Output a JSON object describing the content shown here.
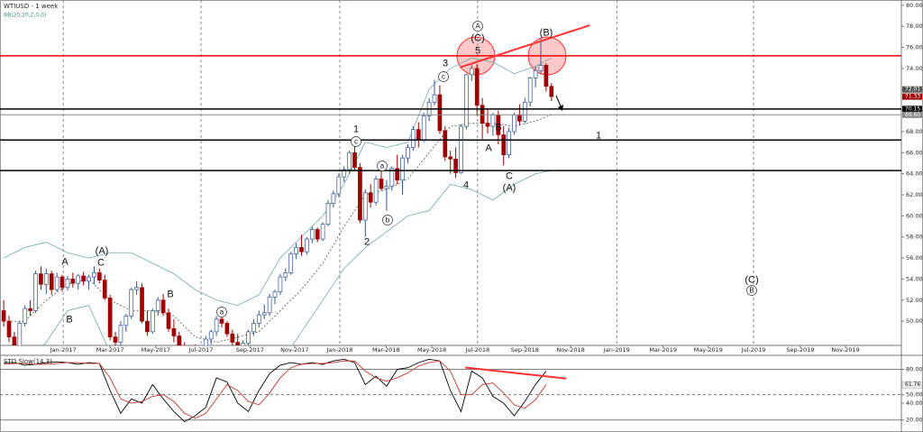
{
  "chart_data": [
    {
      "type": "candlestick",
      "title": "WTIUSD - 1 week",
      "indicator": "BB(20,20,2,0,0)",
      "bull_color": "#2f5597",
      "bear_color": "#a00000",
      "xlim": [
        -0.7,
        168.8
      ],
      "ylim": [
        47.7,
        80.5
      ],
      "xticks": [
        {
          "value": 11.2,
          "label": "Jan-2017"
        },
        {
          "value": 20,
          "label": "Mar-2017"
        },
        {
          "value": 28.6,
          "label": "May-2017"
        },
        {
          "value": 37.1,
          "label": "Jul-2017"
        },
        {
          "value": 46.3,
          "label": "Sep-2017"
        },
        {
          "value": 54.7,
          "label": "Nov-2017"
        },
        {
          "value": 63.2,
          "label": "Jan-2018"
        },
        {
          "value": 71.9,
          "label": "Mar-2018"
        },
        {
          "value": 80.5,
          "label": "May-2018"
        },
        {
          "value": 89.1,
          "label": "Jul-2018"
        },
        {
          "value": 98,
          "label": "Sep-2018"
        },
        {
          "value": 106.6,
          "label": "Nov-2018"
        },
        {
          "value": 115.3,
          "label": "Jan-2019"
        },
        {
          "value": 124,
          "label": "Mar-2019"
        },
        {
          "value": 132.5,
          "label": "May-2019"
        },
        {
          "value": 141,
          "label": "Jul-2019"
        },
        {
          "value": 149.8,
          "label": "Sep-2019"
        },
        {
          "value": 158.3,
          "label": "Nov-2019"
        }
      ],
      "yticks": [
        {
          "value": 80,
          "label": "80.00"
        },
        {
          "value": 78,
          "label": "78.00"
        },
        {
          "value": 76,
          "label": "76.00"
        },
        {
          "value": 74,
          "label": "74.00"
        },
        {
          "value": 72,
          "label": "72.00"
        },
        {
          "value": 70,
          "label": "70.00"
        },
        {
          "value": 68,
          "label": "68.00"
        },
        {
          "value": 66,
          "label": "66.00"
        },
        {
          "value": 64,
          "label": "64.00"
        },
        {
          "value": 62,
          "label": "62.00"
        },
        {
          "value": 60,
          "label": "60.00"
        },
        {
          "value": 58,
          "label": "58.00"
        },
        {
          "value": 56,
          "label": "56.00"
        },
        {
          "value": 54,
          "label": "54.00"
        },
        {
          "value": 52,
          "label": "52.00"
        },
        {
          "value": 50,
          "label": "50.00"
        }
      ],
      "candles": [
        [
          51,
          52,
          49.5,
          50
        ],
        [
          50,
          50.5,
          48,
          48.5
        ],
        [
          48.5,
          49,
          47,
          47.5
        ],
        [
          47.5,
          50,
          47.2,
          49.8
        ],
        [
          49.8,
          51.5,
          49.5,
          51.2
        ],
        [
          51.2,
          52,
          50.5,
          51
        ],
        [
          51,
          54.8,
          50.8,
          54.5
        ],
        [
          54.5,
          55.2,
          53,
          53.5
        ],
        [
          53.5,
          55,
          52.6,
          54.5
        ],
        [
          54.5,
          54.8,
          52.5,
          53
        ],
        [
          53,
          54.6,
          52.8,
          54.2
        ],
        [
          54.2,
          54.4,
          52.8,
          53.2
        ],
        [
          53.2,
          54.3,
          52.9,
          54
        ],
        [
          54,
          54.6,
          53.2,
          53.6
        ],
        [
          53.6,
          54.5,
          53,
          54.3
        ],
        [
          54.3,
          54.7,
          53.4,
          53.8
        ],
        [
          53.8,
          54.4,
          53,
          54.2
        ],
        [
          54.2,
          55.2,
          53.5,
          54.6
        ],
        [
          54.6,
          55,
          53.6,
          53.9
        ],
        [
          53.9,
          54.4,
          52,
          52.2
        ],
        [
          52.2,
          52.5,
          48.2,
          48.5
        ],
        [
          48.5,
          49,
          47,
          48
        ],
        [
          48,
          50,
          47.5,
          49.6
        ],
        [
          49.6,
          50.7,
          49,
          50.5
        ],
        [
          50.5,
          53.2,
          50.2,
          53
        ],
        [
          53,
          53.8,
          52.5,
          53.2
        ],
        [
          53.2,
          53.6,
          49.8,
          50
        ],
        [
          50,
          51,
          48.6,
          49
        ],
        [
          49,
          51.2,
          48.8,
          51
        ],
        [
          51,
          52.3,
          50.5,
          52
        ],
        [
          52,
          52.6,
          50.5,
          50.8
        ],
        [
          50.8,
          51.2,
          49,
          49.3
        ],
        [
          49.3,
          50.2,
          48,
          48.6
        ],
        [
          48.6,
          49,
          46.5,
          47
        ],
        [
          47,
          48,
          45.5,
          46
        ],
        [
          46,
          47.2,
          45.2,
          47
        ],
        [
          47,
          47.8,
          46,
          46.4
        ],
        [
          46.4,
          47.6,
          46,
          47.2
        ],
        [
          47.2,
          48.6,
          47,
          48.3
        ],
        [
          48.3,
          49.2,
          47.8,
          49
        ],
        [
          49,
          50.5,
          48.6,
          50.2
        ],
        [
          50.2,
          50.6,
          49.4,
          49.8
        ],
        [
          49.8,
          50,
          48.5,
          48.8
        ],
        [
          48.8,
          49.2,
          47.6,
          48
        ],
        [
          48,
          48.8,
          47.2,
          47.6
        ],
        [
          47.6,
          48.2,
          46.8,
          47.9
        ],
        [
          47.9,
          49.2,
          47.5,
          49
        ],
        [
          49,
          50.2,
          48.6,
          49.8
        ],
        [
          49.8,
          51,
          49.4,
          50.6
        ],
        [
          50.6,
          51.6,
          50.2,
          50.8
        ],
        [
          50.8,
          52.6,
          50.5,
          52.3
        ],
        [
          52.3,
          53,
          51.6,
          52.8
        ],
        [
          52.8,
          54.5,
          52.5,
          54.2
        ],
        [
          54.2,
          55,
          53.8,
          54.6
        ],
        [
          54.6,
          56.6,
          54.4,
          56.4
        ],
        [
          56.4,
          57.4,
          55.9,
          57
        ],
        [
          57,
          58.2,
          56.2,
          56.6
        ],
        [
          56.6,
          58,
          56.3,
          57.8
        ],
        [
          57.8,
          59,
          57.4,
          58.7
        ],
        [
          58.7,
          58.9,
          57.5,
          57.8
        ],
        [
          57.8,
          59.4,
          57.6,
          59.2
        ],
        [
          59.2,
          61.5,
          59,
          61.2
        ],
        [
          61.2,
          62.4,
          60.8,
          62.1
        ],
        [
          62.1,
          64,
          61.8,
          63.7
        ],
        [
          63.7,
          64.7,
          63.2,
          64.4
        ],
        [
          64.4,
          66.2,
          64,
          66
        ],
        [
          66,
          66.6,
          64.3,
          64.6
        ],
        [
          64.6,
          65,
          59.3,
          59.6
        ],
        [
          59.6,
          62.5,
          58,
          62.2
        ],
        [
          62.2,
          63,
          60.8,
          61.3
        ],
        [
          61.3,
          63.8,
          61,
          63.5
        ],
        [
          63.5,
          64.3,
          62.4,
          62.6
        ],
        [
          62.6,
          63.4,
          60.5,
          62.8
        ],
        [
          62.8,
          64.7,
          62.4,
          64.5
        ],
        [
          64.5,
          65.8,
          63,
          63.4
        ],
        [
          63.4,
          65.8,
          62,
          65.5
        ],
        [
          65.5,
          66.8,
          65,
          66.5
        ],
        [
          66.5,
          68.5,
          66.2,
          68.2
        ],
        [
          68.2,
          68.9,
          66.5,
          67.2
        ],
        [
          67.2,
          69.8,
          67,
          69.5
        ],
        [
          69.5,
          71.2,
          69,
          70.8
        ],
        [
          70.8,
          72.9,
          70.5,
          71.5
        ],
        [
          71.5,
          72.4,
          67.8,
          68.1
        ],
        [
          68.1,
          68.5,
          65.2,
          65.6
        ],
        [
          65.6,
          66.2,
          64,
          65.4
        ],
        [
          65.4,
          66.5,
          63.6,
          64.1
        ],
        [
          64.1,
          68.7,
          64,
          68.5
        ],
        [
          68.5,
          73.5,
          68.2,
          73.4
        ],
        [
          73.4,
          74.5,
          72.8,
          74
        ],
        [
          74,
          74.4,
          69.5,
          70.5
        ],
        [
          70.5,
          71.2,
          67.3,
          68.8
        ],
        [
          68.8,
          70.2,
          67.8,
          68.5
        ],
        [
          68.5,
          69.8,
          67.6,
          69.6
        ],
        [
          69.6,
          70,
          66.8,
          67.7
        ],
        [
          67.7,
          68.5,
          64.8,
          65.8
        ],
        [
          65.8,
          68.4,
          65.5,
          68
        ],
        [
          68,
          69.8,
          67.7,
          69.6
        ],
        [
          69.6,
          70.6,
          68.6,
          69
        ],
        [
          69,
          71.2,
          68.8,
          70.8
        ],
        [
          70.8,
          73.2,
          70.4,
          73.1
        ],
        [
          73.1,
          74.2,
          72.2,
          73.8
        ],
        [
          73.8,
          76.9,
          73.5,
          74.3
        ],
        [
          74.3,
          74.5,
          71.8,
          72.3
        ],
        [
          72.3,
          72.6,
          70.9,
          71.33
        ]
      ],
      "bollinger": {
        "color": "#6fa8a8",
        "x": [
          0,
          4,
          8,
          12,
          16,
          20,
          24,
          28,
          32,
          36,
          40,
          44,
          48,
          52,
          56,
          60,
          64,
          68,
          72,
          76,
          80,
          84,
          88,
          92,
          96,
          100,
          103
        ],
        "upper": [
          56,
          57,
          57.5,
          56.5,
          56,
          56.5,
          56.5,
          55.5,
          54.5,
          53,
          52,
          51.5,
          52.5,
          56,
          58,
          60,
          63,
          67,
          66.5,
          67,
          72,
          74,
          75,
          74.6,
          73.5,
          74.2,
          75
        ],
        "middle": [
          50,
          50,
          52,
          53.5,
          54,
          52,
          51,
          51,
          50.5,
          48.5,
          48,
          48.5,
          49,
          51,
          53,
          55.5,
          59,
          62,
          62.5,
          63.5,
          66,
          68.5,
          68.8,
          68.8,
          68.5,
          69,
          69.6
        ],
        "lower": [
          45,
          46,
          48,
          51,
          51.5,
          47,
          46,
          46.5,
          47,
          44,
          44,
          45,
          45.5,
          46,
          49,
          52,
          55,
          57,
          58.5,
          60,
          60.5,
          63,
          62.5,
          61.5,
          63,
          64,
          64.3
        ]
      },
      "levels": [
        {
          "value": 75.2,
          "color": "#ff0000",
          "width": 1.5
        },
        {
          "value": 70.15,
          "color": "#000000",
          "width": 1.5
        },
        {
          "value": 69.6,
          "color": "#888888",
          "width": 1
        },
        {
          "value": 67.2,
          "color": "#000000",
          "width": 1.5
        },
        {
          "value": 64.3,
          "color": "#000000",
          "width": 1.5
        }
      ],
      "trendline": {
        "x": [
          85.8,
          110.2
        ],
        "y": [
          74.1,
          78.1
        ],
        "color": "#ff3333"
      },
      "price_markers": [
        {
          "value": 72.01,
          "label": "72.01",
          "color": "#555555"
        },
        {
          "value": 71.33,
          "label": "71.33",
          "color": "#a00000"
        },
        {
          "value": 70.15,
          "label": "70.15",
          "color": "#000000"
        },
        {
          "value": 69.6,
          "label": "69.60",
          "color": "#888888"
        }
      ],
      "annotations": [
        {
          "text": "A",
          "circled": false
        },
        {
          "text": "B",
          "circled": false
        },
        {
          "text": "(A)",
          "circled": false
        },
        {
          "text": "C",
          "circled": false
        },
        {
          "text": "B",
          "circled": false
        },
        {
          "text": "a",
          "circled": true
        },
        {
          "text": "1",
          "circled": false
        },
        {
          "text": "c",
          "circled": true
        },
        {
          "text": "a",
          "circled": true
        },
        {
          "text": "2",
          "circled": false
        },
        {
          "text": "b",
          "circled": true
        },
        {
          "text": "3",
          "circled": false
        },
        {
          "text": "c",
          "circled": true
        },
        {
          "text": "A",
          "circled": true
        },
        {
          "text": "(C)",
          "circled": false
        },
        {
          "text": "5",
          "circled": false
        },
        {
          "text": "4",
          "circled": false
        },
        {
          "text": "B",
          "circled": false
        },
        {
          "text": "A",
          "circled": false
        },
        {
          "text": "C",
          "circled": false
        },
        {
          "text": "(A)",
          "circled": false
        },
        {
          "text": "(B)",
          "circled": false
        },
        {
          "text": "1",
          "circled": false
        },
        {
          "text": "(C)",
          "circled": false
        },
        {
          "text": "B",
          "circled": true
        }
      ]
    },
    {
      "type": "line",
      "title": "STO Slow(14,3)",
      "xlim": [
        -0.7,
        168.8
      ],
      "ylim": [
        5.8,
        95.6
      ],
      "yticks": [
        {
          "value": 80,
          "label": "80.00"
        },
        {
          "value": 50,
          "label": "50.00"
        },
        {
          "value": 40,
          "label": "40.00"
        },
        {
          "value": 20,
          "label": "20.00"
        }
      ],
      "value_marker": {
        "value": 61.76,
        "label": "61.76"
      },
      "levels": [
        {
          "value": 80,
          "dashed": false
        },
        {
          "value": 50,
          "dashed": true
        },
        {
          "value": 20,
          "dashed": false
        }
      ],
      "x": [
        0,
        2,
        4,
        6,
        8,
        10,
        12,
        14,
        16,
        18,
        20,
        22,
        24,
        26,
        28,
        30,
        32,
        34,
        36,
        38,
        40,
        42,
        44,
        46,
        48,
        50,
        52,
        54,
        56,
        58,
        60,
        62,
        64,
        66,
        68,
        70,
        72,
        74,
        76,
        78,
        80,
        82,
        84,
        86,
        88,
        90,
        92,
        94,
        96,
        98,
        100,
        102
      ],
      "series": [
        {
          "color": "#000000",
          "values": [
            88,
            88,
            85,
            86,
            88,
            89,
            88,
            86,
            88,
            87,
            55,
            28,
            45,
            40,
            62,
            45,
            30,
            18,
            25,
            35,
            70,
            65,
            40,
            30,
            55,
            75,
            85,
            88,
            86,
            88,
            86,
            90,
            92,
            88,
            62,
            72,
            60,
            80,
            82,
            88,
            92,
            90,
            55,
            30,
            78,
            70,
            48,
            40,
            25,
            42,
            62,
            78
          ]
        },
        {
          "color": "#c0392b",
          "values": [
            86,
            87,
            87,
            86,
            86,
            87,
            88,
            88,
            87,
            87,
            70,
            45,
            40,
            42,
            48,
            50,
            42,
            28,
            22,
            28,
            45,
            62,
            55,
            42,
            38,
            52,
            70,
            82,
            86,
            87,
            87,
            88,
            90,
            90,
            78,
            70,
            66,
            70,
            76,
            84,
            88,
            90,
            78,
            50,
            50,
            62,
            64,
            52,
            38,
            34,
            44,
            62
          ]
        }
      ],
      "trendline": {
        "x": [
          86.8,
          105.8
        ],
        "y": [
          82.2,
          69.1
        ],
        "color": "#ff3333"
      }
    }
  ]
}
